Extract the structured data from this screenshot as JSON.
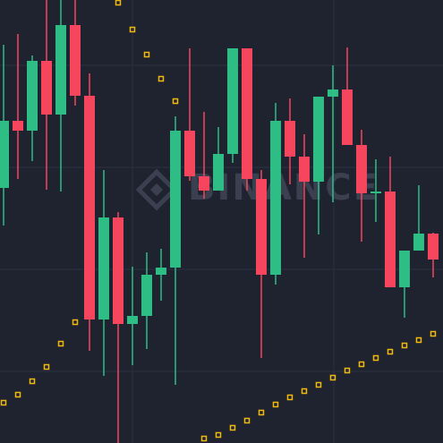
{
  "chart_data": {
    "type": "candlestick",
    "watermark": "BINANCE",
    "xlim": [
      -0.25,
      30.69
    ],
    "ylim": [
      0,
      495
    ],
    "up_color": "#2ebd85",
    "down_color": "#f6465d",
    "open": [
      285,
      360,
      349,
      427,
      367,
      467,
      388,
      138,
      252,
      133,
      142,
      188,
      196,
      349,
      298,
      282,
      323,
      441,
      295,
      188,
      360,
      320,
      292,
      387,
      395,
      333,
      279,
      281,
      174,
      215,
      234
    ],
    "high": [
      445,
      457,
      433,
      495,
      495,
      495,
      413,
      305,
      258,
      197,
      213,
      217,
      365,
      441,
      370,
      353,
      441,
      441,
      305,
      380,
      385,
      345,
      387,
      422,
      442,
      350,
      317,
      320,
      215,
      288,
      235
    ],
    "low": [
      243,
      295,
      315,
      283,
      281,
      377,
      103,
      75,
      0,
      87,
      105,
      159,
      65,
      293,
      273,
      282,
      313,
      282,
      95,
      177,
      289,
      207,
      233,
      269,
      333,
      225,
      247,
      174,
      140,
      215,
      185
    ],
    "close": [
      360,
      349,
      427,
      367,
      467,
      388,
      138,
      252,
      133,
      142,
      188,
      196,
      349,
      298,
      282,
      323,
      441,
      295,
      188,
      360,
      320,
      292,
      387,
      395,
      333,
      279,
      281,
      174,
      215,
      234,
      205
    ],
    "sar": {
      "color": "#f0b90b",
      "values": [
        45,
        54,
        69,
        85,
        111,
        135,
        null,
        null,
        492,
        462,
        434,
        407,
        382,
        null,
        5,
        9,
        17,
        25,
        34,
        43,
        51,
        58,
        65,
        73,
        81,
        88,
        95,
        102,
        109,
        115,
        122
      ]
    }
  }
}
